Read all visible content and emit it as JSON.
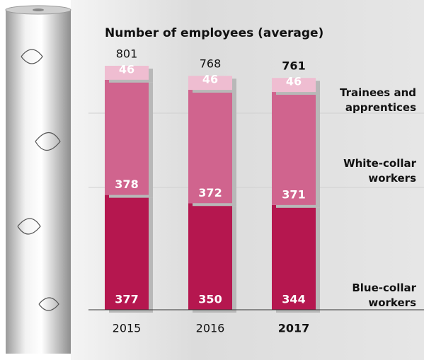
{
  "chart_data": {
    "type": "stacked_bar",
    "title": "Number of employees (average)",
    "categories": [
      "2015",
      "2016",
      "2017"
    ],
    "series": [
      {
        "name": "Blue-collar workers",
        "color": "#b5174f",
        "values": [
          377,
          350,
          344
        ]
      },
      {
        "name": "White-collar workers",
        "color": "#d0648e",
        "values": [
          378,
          372,
          371
        ]
      },
      {
        "name": "Trainees and apprentices",
        "color": "#efbdd1",
        "values": [
          46,
          46,
          46
        ]
      }
    ],
    "totals": [
      801,
      768,
      761
    ],
    "ylim": [
      0,
      801
    ]
  }
}
